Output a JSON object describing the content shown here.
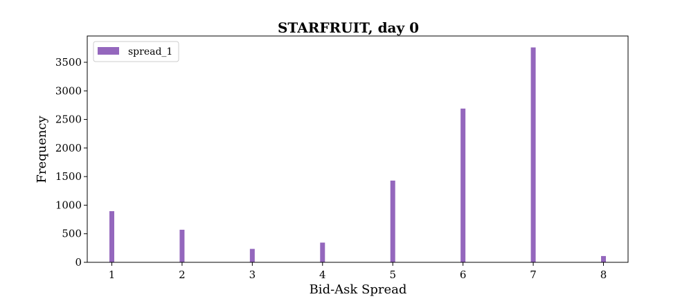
{
  "chart_data": {
    "type": "bar",
    "title": "STARFRUIT, day 0",
    "xlabel": "Bid-Ask Spread",
    "ylabel": "Frequency",
    "x": [
      1,
      2,
      3,
      4,
      5,
      6,
      7,
      8
    ],
    "x_ticks": [
      "1",
      "2",
      "3",
      "4",
      "5",
      "6",
      "7",
      "8"
    ],
    "y_ticks": [
      "0",
      "500",
      "1000",
      "1500",
      "2000",
      "2500",
      "3000",
      "3500"
    ],
    "xlim": [
      0.65,
      8.35
    ],
    "ylim": [
      0,
      3960
    ],
    "series": [
      {
        "name": "spread_1",
        "color": "#9467bd",
        "values": [
          895,
          570,
          235,
          345,
          1430,
          2690,
          3760,
          110
        ]
      }
    ],
    "legend": {
      "position": "upper-left",
      "entries": [
        "spread_1"
      ]
    },
    "grid": false
  }
}
